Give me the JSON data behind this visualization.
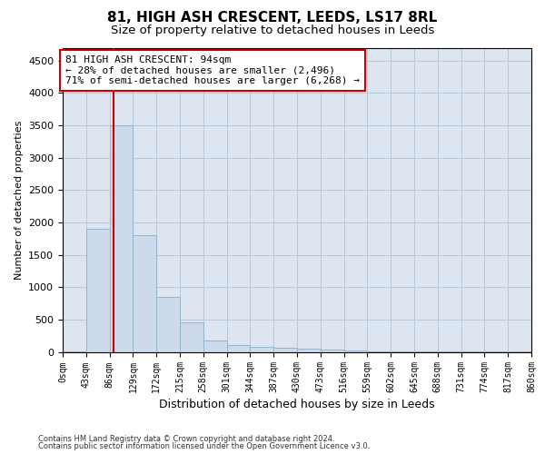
{
  "title": "81, HIGH ASH CRESCENT, LEEDS, LS17 8RL",
  "subtitle": "Size of property relative to detached houses in Leeds",
  "xlabel": "Distribution of detached houses by size in Leeds",
  "ylabel": "Number of detached properties",
  "bar_color": "#ccdaeb",
  "bar_edge_color": "#8aafc8",
  "annotation_box_color": "#cc0000",
  "annotation_line_color": "#cc0000",
  "footer1": "Contains HM Land Registry data © Crown copyright and database right 2024.",
  "footer2": "Contains public sector information licensed under the Open Government Licence v3.0.",
  "property_sqm": 94,
  "annotation_line1": "81 HIGH ASH CRESCENT: 94sqm",
  "annotation_line2": "← 28% of detached houses are smaller (2,496)",
  "annotation_line3": "71% of semi-detached houses are larger (6,268) →",
  "bin_edges": [
    0,
    43,
    86,
    129,
    172,
    215,
    258,
    301,
    344,
    387,
    430,
    473,
    516,
    559,
    602,
    645,
    688,
    731,
    774,
    817,
    860
  ],
  "bin_labels": [
    "0sqm",
    "43sqm",
    "86sqm",
    "129sqm",
    "172sqm",
    "215sqm",
    "258sqm",
    "301sqm",
    "344sqm",
    "387sqm",
    "430sqm",
    "473sqm",
    "516sqm",
    "559sqm",
    "602sqm",
    "645sqm",
    "688sqm",
    "731sqm",
    "774sqm",
    "817sqm",
    "860sqm"
  ],
  "bar_heights": [
    10,
    1900,
    3500,
    1800,
    850,
    450,
    175,
    100,
    75,
    60,
    50,
    40,
    15,
    8,
    5,
    3,
    2,
    2,
    1,
    1
  ],
  "ylim": [
    0,
    4700
  ],
  "yticks": [
    0,
    500,
    1000,
    1500,
    2000,
    2500,
    3000,
    3500,
    4000,
    4500
  ],
  "grid_color": "#b8c8d8",
  "background_color": "#dde6f0",
  "title_fontsize": 11,
  "subtitle_fontsize": 9.5,
  "annotation_fontsize": 8,
  "ylabel_fontsize": 8,
  "xlabel_fontsize": 9
}
